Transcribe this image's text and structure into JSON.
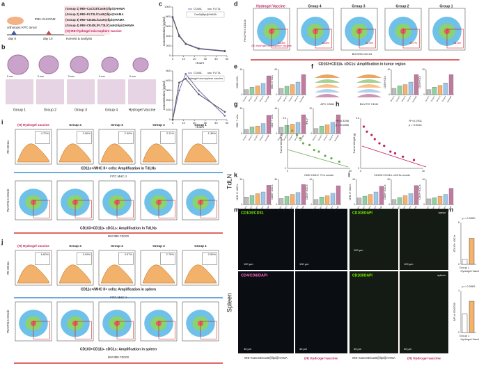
{
  "panel_letters": {
    "a": "a",
    "b": "b",
    "c": "c",
    "d": "d",
    "e": "e",
    "f": "f",
    "g": "g",
    "h": "h",
    "i": "i",
    "j": "j",
    "k": "k",
    "l": "l",
    "m": "m",
    "n": "n"
  },
  "a": {
    "tumor": "orthotopic KPC tumor",
    "treatment": "IRE+VACCINE",
    "day0": "day 0",
    "day10": "day 10",
    "harvest": "Harvest & analysis",
    "groups": [
      "(Group 1) IRE+CaCO3/Cas9@lipi@HAMA",
      "(Group 2) IRE+FLT3L/Cas9@lipi@HAMA",
      "(Group 3) IRE+CD40L/Cas9@lipi@HAMA",
      "(Group 4) IRE+CD40L/FLT3L/Cas9@lipi@HAMA",
      "(H) IRE+hydrogel microsphere vaccine"
    ]
  },
  "b": {
    "groups": [
      "Group 1",
      "Group 2",
      "Group 3",
      "Group 4",
      "Hydrogel Vaccine"
    ],
    "scale": "5 mm"
  },
  "c": {
    "y_label": "concentration (pg/ml)",
    "x_label": "Hours",
    "charts": [
      {
        "type": "line",
        "note": "Cas9@lipi@HAMA",
        "x": [
          0,
          6,
          12,
          24,
          48
        ],
        "xlim": [
          0,
          50
        ],
        "xticks": [
          0,
          10,
          20,
          30,
          40,
          50
        ],
        "ylim": [
          0,
          1000
        ],
        "yticks": [
          0,
          200,
          400,
          600,
          800,
          1000
        ],
        "series": [
          {
            "name": "CD40L",
            "color": "#7b6fb3",
            "values": [
              800,
              420,
              250,
              150,
              100
            ]
          },
          {
            "name": "FLT3L",
            "color": "#555555",
            "values": [
              780,
              400,
              240,
              140,
              90
            ]
          }
        ]
      },
      {
        "type": "line",
        "note": "hydrogel microsphere vaccine",
        "x": [
          0,
          6,
          12,
          24,
          48
        ],
        "xlim": [
          0,
          50
        ],
        "xticks": [
          0,
          10,
          20,
          30,
          40,
          50
        ],
        "ylim": [
          0,
          500
        ],
        "yticks": [
          0,
          100,
          200,
          300,
          400,
          500
        ],
        "series": [
          {
            "name": "CD40L",
            "color": "#7b6fb3",
            "values": [
              0,
              300,
              470,
              300,
              40
            ]
          },
          {
            "name": "FLT3L",
            "color": "#555555",
            "values": [
              0,
              380,
              420,
              260,
              80
            ]
          }
        ]
      }
    ]
  },
  "d": {
    "columns": [
      "Hydrogel Vaccine",
      "Group 4",
      "Group 3",
      "Group 2",
      "Group 1"
    ],
    "percents": [
      "34.8%",
      "28.8%",
      "22.5%",
      "19.7%",
      "14.3%"
    ],
    "y_label": "PerCP/5.5 CD11b",
    "x_label": "BUV395 CD103",
    "caption": "CD103+CD11b- cDC1s: Amplification in tumor region",
    "sub": "(H) Hydrogel microsphere vaccine"
  },
  "bar_groups": [
    "Group 1",
    "Group 2",
    "Group 3",
    "Group 4",
    "Hydrogel"
  ],
  "bar_colors": [
    "#bdbdbd",
    "#8fd19e",
    "#f6b26b",
    "#9fc5e8",
    "#c27ba0"
  ],
  "mini_bars": [
    {
      "panel": "e",
      "y_label": "CD86+ DCs",
      "ylim": [
        0,
        40
      ],
      "values": [
        8,
        12,
        14,
        18,
        30
      ]
    },
    {
      "panel": "e",
      "y_label": "MHC II+ DCs",
      "ylim": [
        0,
        60
      ],
      "values": [
        15,
        20,
        24,
        30,
        48
      ]
    },
    {
      "panel": "f",
      "y_label": "CD80+ DCs",
      "ylim": [
        0,
        40
      ],
      "values": [
        10,
        14,
        16,
        20,
        32
      ]
    },
    {
      "panel": "f",
      "y_label": "CD40+ DCs",
      "ylim": [
        0,
        30
      ],
      "values": [
        6,
        9,
        11,
        14,
        24
      ]
    },
    {
      "panel": "g",
      "y_label": "CD8+ T cells",
      "ylim": [
        0,
        30
      ],
      "values": [
        5,
        8,
        9,
        12,
        22
      ]
    },
    {
      "panel": "g",
      "y_label": "CD4+ T cells",
      "ylim": [
        0,
        40
      ],
      "values": [
        10,
        13,
        15,
        18,
        30
      ]
    },
    {
      "panel": "g",
      "y_label": "IFN-γ+",
      "ylim": [
        0,
        20
      ],
      "values": [
        4,
        6,
        7,
        9,
        15
      ]
    },
    {
      "panel": "k",
      "y_label": "MHC II+ cDC1s",
      "ylim": [
        0,
        60
      ],
      "values": [
        18,
        22,
        26,
        30,
        46
      ]
    },
    {
      "panel": "k",
      "y_label": "CD86+ cDC1s",
      "ylim": [
        0,
        50
      ],
      "values": [
        12,
        16,
        20,
        24,
        40
      ]
    },
    {
      "panel": "k",
      "y_label": "CD40+ cDC1s",
      "ylim": [
        0,
        40
      ],
      "values": [
        8,
        12,
        14,
        18,
        30
      ]
    },
    {
      "panel": "l",
      "y_label": "MHC II+ cDC1s",
      "ylim": [
        0,
        60
      ],
      "values": [
        16,
        20,
        24,
        30,
        44
      ]
    },
    {
      "panel": "l",
      "y_label": "CD86+ cDC1s",
      "ylim": [
        0,
        50
      ],
      "values": [
        10,
        14,
        18,
        22,
        38
      ]
    },
    {
      "panel": "l",
      "y_label": "CD40+ cDC1s",
      "ylim": [
        0,
        40
      ],
      "values": [
        9,
        11,
        13,
        16,
        26
      ]
    }
  ],
  "f": {
    "x1": "APC CD86",
    "x2": "BUV737 CD40"
  },
  "h": {
    "stats": [
      "R²=0.3298",
      "p = 0.0056",
      "R²=0.2911",
      "p = 0.0021"
    ],
    "x_labels": [
      "CD8+CD44+ TCs counts",
      "CD103+CD11b- cDC1s counts"
    ],
    "y_label": "Tumor Weight (g)",
    "charts": [
      {
        "type": "scatter",
        "xlim": [
          0,
          40
        ],
        "ylim": [
          0,
          0.6
        ],
        "x": [
          3,
          6,
          8,
          10,
          14,
          17,
          20,
          24,
          28,
          33
        ],
        "y": [
          0.45,
          0.4,
          0.36,
          0.3,
          0.28,
          0.22,
          0.2,
          0.15,
          0.12,
          0.08
        ],
        "color": "#6aa84f"
      },
      {
        "type": "scatter",
        "xlim": [
          0,
          40
        ],
        "ylim": [
          0,
          0.6
        ],
        "x": [
          2,
          4,
          7,
          9,
          12,
          15,
          19,
          22,
          27,
          34
        ],
        "y": [
          0.5,
          0.44,
          0.4,
          0.35,
          0.3,
          0.27,
          0.2,
          0.18,
          0.14,
          0.1
        ],
        "color": "#c2185b"
      }
    ]
  },
  "i": {
    "headers": [
      "(H) Hydrogel vaccine",
      "Group 4",
      "Group 3",
      "Group 2",
      "Group 1"
    ],
    "percents": [
      "4.70%",
      "2.66%",
      "2.96%",
      "2.11%",
      "1.38%"
    ],
    "top_y": "PE CD11c",
    "top_x": "FITC MHC II",
    "top_caption": "CD11c+/MHC II+ cells: Amplification in TdLNs",
    "bottom_y": "PerCP/5.5 CD11b",
    "bottom_x": "BUV395 CD103",
    "bottom_caption": "CD103+CD11b- cDC1s: Amplification in TdLNs",
    "side": "TdLN"
  },
  "j": {
    "headers": [
      "(H) Hydrogel vaccine",
      "Group 4",
      "Group 3",
      "Group 2",
      "Group 1"
    ],
    "percents": [
      "6.60%",
      "3.99%",
      "3.57%",
      "2.78%",
      "2.59%"
    ],
    "top_y": "PE CD11c",
    "top_x": "FITC MHC II",
    "top_caption": "CD11c+/MHC II+ cells: Amplification in spleen",
    "bottom_y": "PerCP/5.5 CD11b",
    "bottom_x": "BUV395 CD103",
    "bottom_caption": "CD103+CD11b- cDC1s: Amplification in spleen",
    "side": "Spleen"
  },
  "m": {
    "stain1": "CD103/CD31",
    "stain2": "CD4/CD8/DAPI",
    "stain3": "CD103/DAPI",
    "scale1": "100 μm",
    "scale2": "40 μm",
    "tissue1": "tumor",
    "tissue2": "spleen",
    "group1": "IRE+CaCO3/Cas9@lipi@HAMA",
    "group2": "(H) Hydrogel vaccine"
  },
  "n": {
    "categories": [
      "Group 1",
      "Hydrogel Vaccine"
    ],
    "charts": [
      {
        "type": "bar",
        "p": "p = 0.0050",
        "ylim": [
          0,
          8
        ],
        "values": [
          1,
          5
        ],
        "y_label": "CD103+ cDC1s"
      },
      {
        "type": "bar",
        "p": "p = 0.0082",
        "ylim": [
          0,
          2
        ],
        "values": [
          0.9,
          1.5
        ],
        "y_label": "MFI of CD4/CD8"
      }
    ]
  }
}
